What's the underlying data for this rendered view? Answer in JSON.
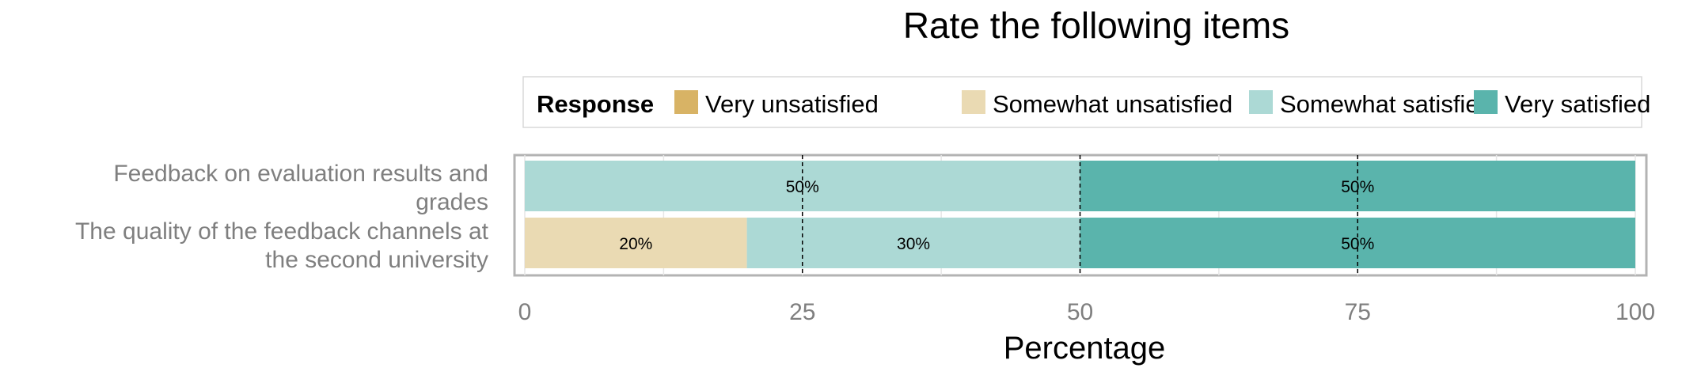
{
  "chart_data": {
    "type": "bar",
    "orientation": "horizontal",
    "stacked": true,
    "title": "Rate the following items",
    "xlabel": "Percentage",
    "ylabel": "",
    "xlim": [
      0,
      100
    ],
    "x_ticks": [
      "0",
      "25",
      "50",
      "75",
      "100"
    ],
    "grid": true,
    "legend": {
      "title": "Response",
      "position": "top",
      "entries": [
        "Very unsatisfied",
        "Somewhat unsatisfied",
        "Somewhat satisfied",
        "Very satisfied"
      ]
    },
    "categories": [
      "Feedback on evaluation results and grades",
      "The quality of the feedback channels at the second university"
    ],
    "category_lines": [
      [
        "Feedback on evaluation results and",
        "grades"
      ],
      [
        "The quality of the feedback channels at",
        "the second university"
      ]
    ],
    "series": [
      {
        "name": "Very unsatisfied",
        "color": "#D8B365",
        "values": [
          0,
          0
        ],
        "labels": [
          "",
          ""
        ]
      },
      {
        "name": "Somewhat unsatisfied",
        "color": "#EADAB3",
        "values": [
          0,
          20
        ],
        "labels": [
          "",
          "20%"
        ]
      },
      {
        "name": "Somewhat satisfied",
        "color": "#ACD9D5",
        "values": [
          50,
          30
        ],
        "labels": [
          "50%",
          "30%"
        ]
      },
      {
        "name": "Very satisfied",
        "color": "#5AB4AC",
        "values": [
          50,
          50
        ],
        "labels": [
          "50%",
          "50%"
        ]
      }
    ]
  }
}
